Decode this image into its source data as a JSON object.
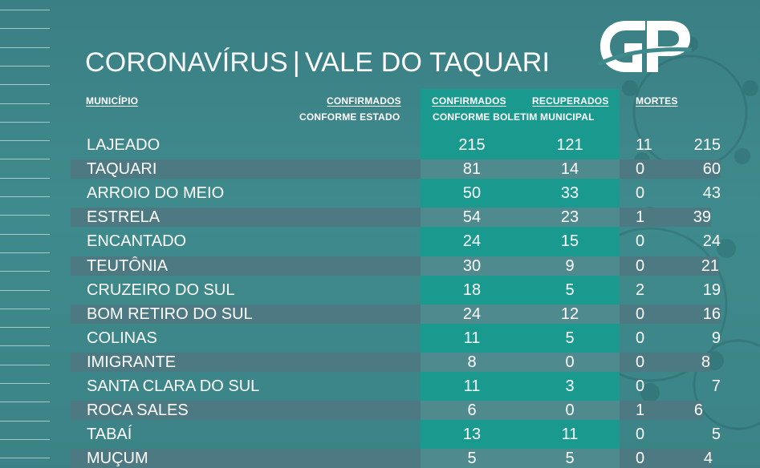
{
  "title": {
    "part1": "CORONAVÍRUS",
    "separator": "|",
    "part2": "VALE DO TAQUARI"
  },
  "logo": {
    "text": "GP"
  },
  "headers": {
    "municipio": "MUNICÍPIO",
    "confirmados_estado_line1": "CONFIRMADOS",
    "confirmados_estado_line2": "CONFORME ESTADO",
    "confirmados_boletim_line1": "CONFIRMADOS",
    "recuperados": "RECUPERADOS",
    "boletim_line2": "CONFORME BOLETIM MUNICIPAL",
    "mortes": "MORTES"
  },
  "rows": [
    {
      "municipio": "LAJEADO",
      "estado": "215",
      "boletim": "215",
      "recuperados": "121",
      "mortes": "11"
    },
    {
      "municipio": "TAQUARI",
      "estado": "60",
      "boletim": "81",
      "recuperados": "14",
      "mortes": "0"
    },
    {
      "municipio": "ARROIO DO MEIO",
      "estado": "43",
      "boletim": "50",
      "recuperados": "33",
      "mortes": "0"
    },
    {
      "municipio": "ESTRELA",
      "estado": "39",
      "boletim": "54",
      "recuperados": "23",
      "mortes": "1"
    },
    {
      "municipio": "ENCANTADO",
      "estado": "24",
      "boletim": "24",
      "recuperados": "15",
      "mortes": "0"
    },
    {
      "municipio": "TEUTÔNIA",
      "estado": "21",
      "boletim": "30",
      "recuperados": "9",
      "mortes": "0"
    },
    {
      "municipio": "CRUZEIRO DO SUL",
      "estado": "19",
      "boletim": "18",
      "recuperados": "5",
      "mortes": "2"
    },
    {
      "municipio": "BOM RETIRO DO SUL",
      "estado": "16",
      "boletim": "24",
      "recuperados": "12",
      "mortes": "0"
    },
    {
      "municipio": "COLINAS",
      "estado": "9",
      "boletim": "11",
      "recuperados": "5",
      "mortes": "0"
    },
    {
      "municipio": "IMIGRANTE",
      "estado": "8",
      "boletim": "8",
      "recuperados": "0",
      "mortes": "0"
    },
    {
      "municipio": "SANTA CLARA DO SUL",
      "estado": "7",
      "boletim": "11",
      "recuperados": "3",
      "mortes": "0"
    },
    {
      "municipio": "ROCA SALES",
      "estado": "6",
      "boletim": "6",
      "recuperados": "0",
      "mortes": "1"
    },
    {
      "municipio": "TABAÍ",
      "estado": "5",
      "boletim": "13",
      "recuperados": "11",
      "mortes": "0"
    },
    {
      "municipio": "MUÇUM",
      "estado": "4",
      "boletim": "5",
      "recuperados": "5",
      "mortes": "0"
    }
  ],
  "colors": {
    "background": "#3f8a8c",
    "teal_column": "#1a9a8f",
    "row_band": "#4d7a82"
  }
}
